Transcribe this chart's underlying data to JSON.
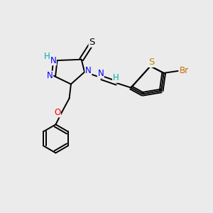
{
  "bg_color": "#ebebeb",
  "bond_color": "#000000",
  "atom_colors": {
    "N": "#0000ff",
    "S_thiol": "#000000",
    "S_thio": "#b8860b",
    "O": "#ff0000",
    "Br": "#cc6600",
    "H": "#00aaaa",
    "C": "#000000"
  },
  "font_size": 8.5,
  "lw": 1.4
}
